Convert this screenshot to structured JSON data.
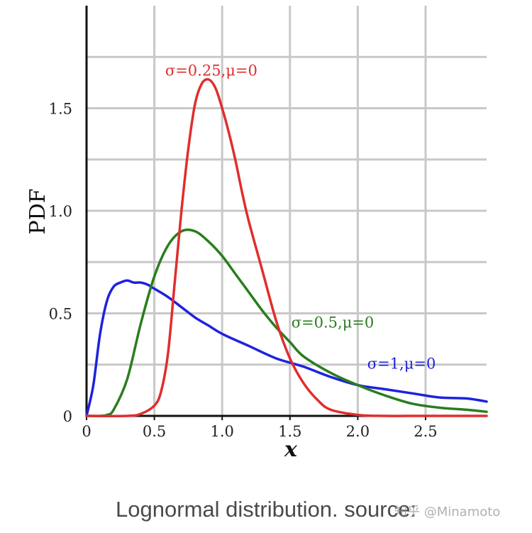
{
  "chart_data": {
    "type": "line",
    "xlabel": "x",
    "ylabel": "PDF",
    "xlim": [
      0,
      2.95
    ],
    "ylim": [
      0,
      2.0
    ],
    "x_ticks": [
      {
        "value": 0,
        "label": "0"
      },
      {
        "value": 0.5,
        "label": "0.5"
      },
      {
        "value": 1.0,
        "label": "1.0"
      },
      {
        "value": 1.5,
        "label": "1.5"
      },
      {
        "value": 2.0,
        "label": "2.0"
      },
      {
        "value": 2.5,
        "label": "2.5"
      }
    ],
    "y_ticks": [
      {
        "value": 0,
        "label": "0"
      },
      {
        "value": 0.5,
        "label": "0.5"
      },
      {
        "value": 1.0,
        "label": "1.0"
      },
      {
        "value": 1.5,
        "label": "1.5"
      }
    ],
    "grid": true,
    "grid_x": [
      0.5,
      1.0,
      1.5,
      2.0,
      2.5
    ],
    "grid_y": [
      0.25,
      0.5,
      0.75,
      1.0,
      1.25,
      1.5,
      1.75
    ],
    "series": [
      {
        "name": "σ=1,μ=0",
        "color": "#1d22e0",
        "label_at": [
          2.07,
          0.23
        ],
        "x": [
          0,
          0.05,
          0.1,
          0.15,
          0.2,
          0.25,
          0.3,
          0.35,
          0.4,
          0.45,
          0.5,
          0.6,
          0.7,
          0.8,
          0.9,
          1.0,
          1.2,
          1.4,
          1.6,
          1.8,
          2.0,
          2.2,
          2.4,
          2.6,
          2.8,
          2.95
        ],
        "y": [
          0,
          0.15,
          0.4,
          0.56,
          0.63,
          0.65,
          0.66,
          0.65,
          0.65,
          0.64,
          0.62,
          0.58,
          0.53,
          0.48,
          0.44,
          0.4,
          0.34,
          0.28,
          0.24,
          0.19,
          0.15,
          0.13,
          0.11,
          0.09,
          0.085,
          0.07
        ]
      },
      {
        "name": "σ=0.5,μ=0",
        "color": "#2a7d1e",
        "label_at": [
          1.51,
          0.43
        ],
        "x": [
          0,
          0.1,
          0.15,
          0.2,
          0.3,
          0.4,
          0.5,
          0.6,
          0.7,
          0.8,
          0.9,
          1.0,
          1.1,
          1.2,
          1.3,
          1.4,
          1.5,
          1.6,
          1.8,
          2.0,
          2.2,
          2.4,
          2.6,
          2.8,
          2.95
        ],
        "y": [
          0,
          0,
          0.005,
          0.03,
          0.18,
          0.45,
          0.68,
          0.83,
          0.9,
          0.9,
          0.85,
          0.78,
          0.69,
          0.6,
          0.51,
          0.43,
          0.36,
          0.29,
          0.21,
          0.15,
          0.1,
          0.06,
          0.04,
          0.03,
          0.02
        ]
      },
      {
        "name": "σ=0.25,μ=0",
        "color": "#e02d2d",
        "label_at": [
          0.58,
          1.66
        ],
        "x": [
          0,
          0.3,
          0.4,
          0.5,
          0.55,
          0.6,
          0.65,
          0.7,
          0.75,
          0.8,
          0.85,
          0.9,
          0.95,
          1.0,
          1.05,
          1.1,
          1.15,
          1.2,
          1.3,
          1.4,
          1.5,
          1.6,
          1.7,
          1.8,
          2.0,
          2.2,
          2.5,
          2.95
        ],
        "y": [
          0,
          0,
          0.01,
          0.05,
          0.12,
          0.3,
          0.65,
          1.0,
          1.3,
          1.52,
          1.62,
          1.64,
          1.6,
          1.5,
          1.38,
          1.24,
          1.08,
          0.94,
          0.7,
          0.46,
          0.28,
          0.16,
          0.08,
          0.03,
          0.005,
          0,
          0,
          0
        ]
      }
    ]
  },
  "caption": "Lognormal distribution. source:",
  "watermark": "知乎 @Minamoto"
}
